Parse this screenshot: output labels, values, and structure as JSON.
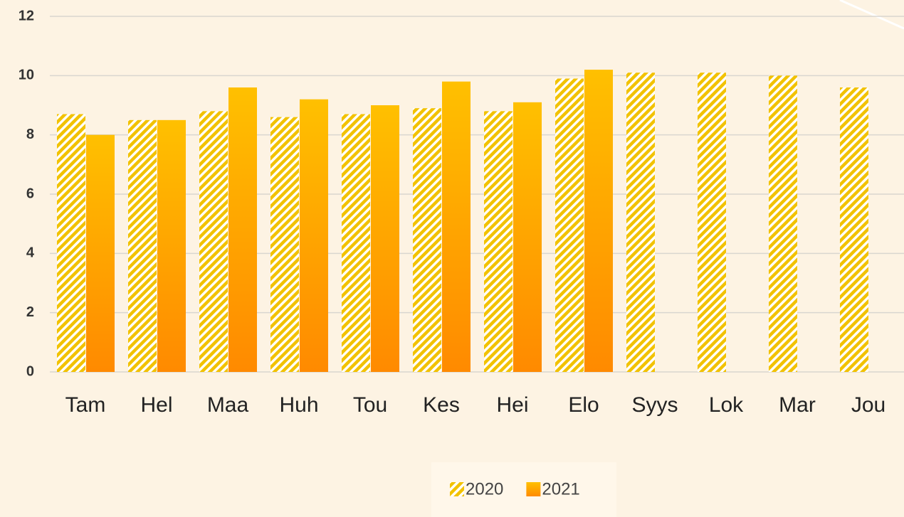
{
  "chart_data": {
    "type": "bar",
    "categories": [
      "Tam",
      "Hel",
      "Maa",
      "Huh",
      "Tou",
      "Kes",
      "Hei",
      "Elo",
      "Syys",
      "Lok",
      "Mar",
      "Jou"
    ],
    "series": [
      {
        "name": "2020",
        "color": "#f2c200",
        "pattern": "stripes",
        "values": [
          8.7,
          8.5,
          8.8,
          8.6,
          8.7,
          8.9,
          8.8,
          9.9,
          10.1,
          10.1,
          10.0,
          9.6
        ]
      },
      {
        "name": "2021",
        "color": "#ffa600",
        "gradient": [
          "#ffc000",
          "#ff8a00"
        ],
        "values": [
          8.0,
          8.5,
          9.6,
          9.2,
          9.0,
          9.8,
          9.1,
          10.2,
          null,
          null,
          null,
          null
        ]
      }
    ],
    "ylim": [
      0,
      12
    ],
    "yticks": [
      0,
      2,
      4,
      6,
      8,
      10,
      12
    ],
    "grid": true,
    "legend": "bottom"
  }
}
